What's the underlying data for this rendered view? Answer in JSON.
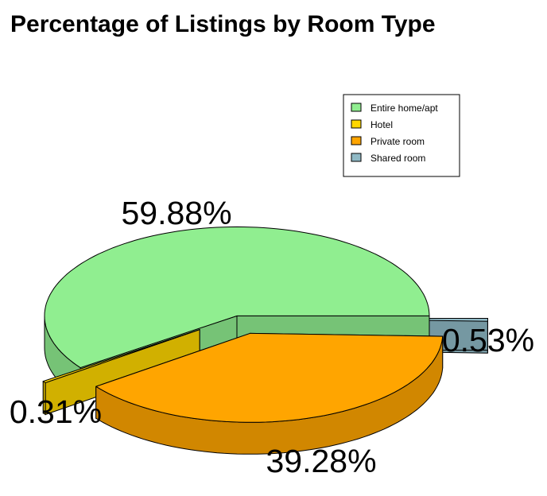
{
  "chart_data": {
    "type": "pie",
    "title": "Percentage of Listings by Room Type",
    "categories": [
      "Entire home/apt",
      "Hotel",
      "Private room",
      "Shared room"
    ],
    "values": [
      59.88,
      0.31,
      39.28,
      0.53
    ],
    "labels": [
      "59.88%",
      "0.31%",
      "39.28%",
      "0.53%"
    ],
    "colors": {
      "Entire home/apt": "#90EE90",
      "Hotel": "#FFD700",
      "Private room": "#FFA500",
      "Shared room": "#8FB9C5"
    },
    "legend_position": "top-right",
    "style": "3d-exploded"
  }
}
